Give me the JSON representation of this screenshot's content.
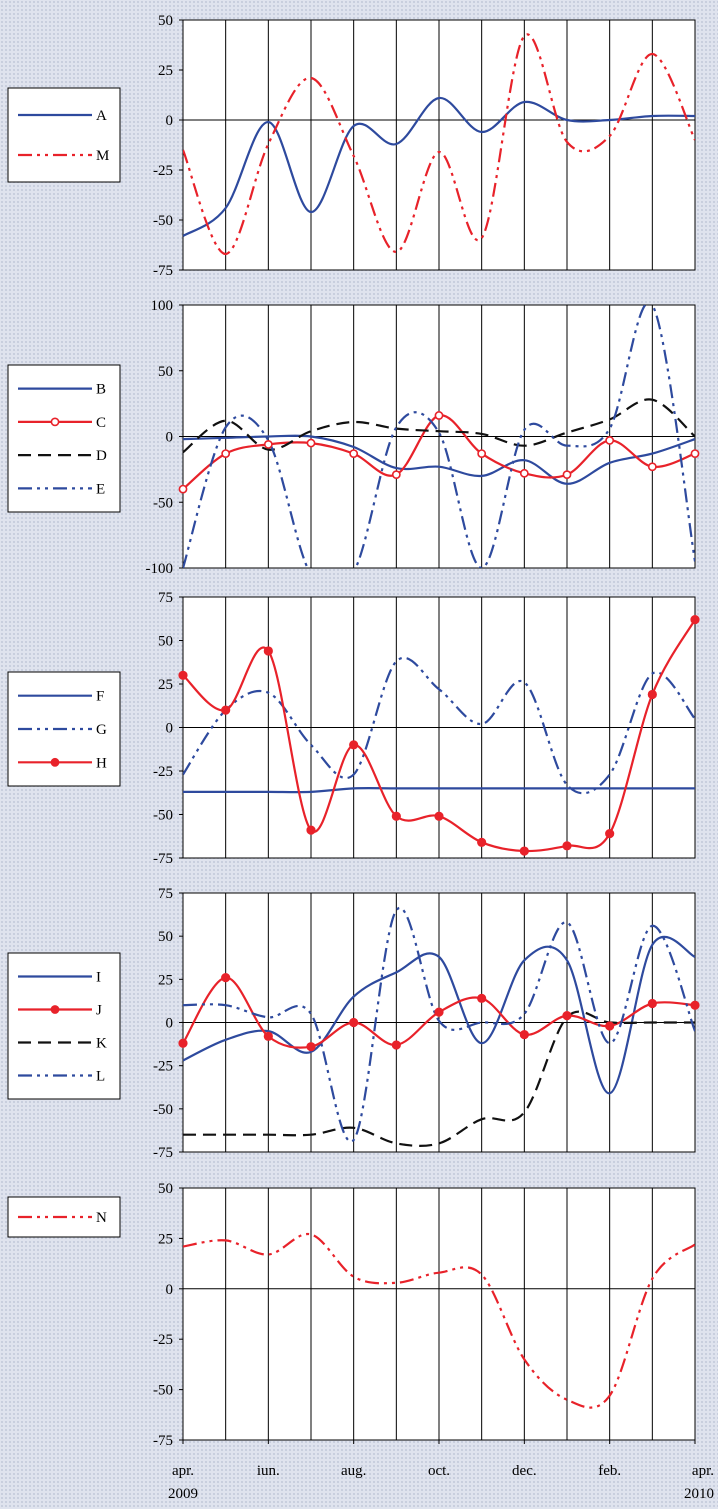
{
  "chart_data": [
    {
      "type": "line",
      "ylim": [
        -75,
        50
      ],
      "yticks": [
        "50",
        "25",
        "0",
        "-25",
        "-50",
        "-75"
      ],
      "grid": true,
      "legend": "left",
      "series": [
        {
          "name": "A",
          "color": "#2e4a9e",
          "dash": "solid",
          "marker": "none",
          "x": [
            0,
            1,
            2,
            3,
            4,
            5,
            6,
            7,
            8,
            9,
            10,
            11,
            12
          ],
          "values": [
            -58,
            -44,
            -1,
            -46,
            -3,
            -12,
            11,
            -6,
            9,
            0,
            0,
            2,
            2
          ]
        },
        {
          "name": "M",
          "color": "#e8222a",
          "dash": "dashdotdot",
          "marker": "none",
          "x": [
            0,
            1,
            2,
            3,
            4,
            5,
            6,
            7,
            8,
            9,
            10,
            11,
            12
          ],
          "values": [
            -15,
            -67,
            -12,
            21,
            -18,
            -66,
            -16,
            -59,
            42,
            -11,
            -8,
            33,
            -10
          ]
        }
      ]
    },
    {
      "type": "line",
      "ylim": [
        -100,
        100
      ],
      "yticks": [
        "100",
        "50",
        "0",
        "-50",
        "-100"
      ],
      "grid": true,
      "legend": "left",
      "series": [
        {
          "name": "B",
          "color": "#2e4a9e",
          "dash": "solid",
          "marker": "none",
          "x": [
            0,
            1,
            2,
            3,
            4,
            5,
            6,
            7,
            8,
            9,
            10,
            11,
            12
          ],
          "values": [
            -2,
            -1,
            0,
            0,
            -8,
            -24,
            -23,
            -30,
            -18,
            -36,
            -20,
            -13,
            -2
          ]
        },
        {
          "name": "C",
          "color": "#e8222a",
          "dash": "solid",
          "marker": "open",
          "x": [
            0,
            1,
            2,
            3,
            4,
            5,
            6,
            7,
            8,
            9,
            10,
            11,
            12
          ],
          "values": [
            -40,
            -13,
            -6,
            -5,
            -13,
            -29,
            16,
            -13,
            -28,
            -29,
            -3,
            -23,
            -13
          ]
        },
        {
          "name": "D",
          "color": "#111111",
          "dash": "dash",
          "marker": "none",
          "x": [
            0,
            1,
            2,
            3,
            4,
            5,
            6,
            7,
            8,
            9,
            10,
            11,
            12
          ],
          "values": [
            -12,
            12,
            -10,
            4,
            11,
            6,
            4,
            2,
            -7,
            3,
            13,
            28,
            0
          ]
        },
        {
          "name": "E",
          "color": "#2e4a9e",
          "dash": "dashdotdot",
          "marker": "none",
          "x": [
            0,
            1,
            2,
            3,
            4,
            5,
            6,
            7,
            8,
            9,
            10,
            11,
            12
          ],
          "values": [
            -100,
            7,
            -3,
            -105,
            -103,
            7,
            3,
            -100,
            5,
            -7,
            6,
            100,
            -95
          ]
        }
      ]
    },
    {
      "type": "line",
      "ylim": [
        -75,
        75
      ],
      "yticks": [
        "75",
        "50",
        "25",
        "0",
        "-25",
        "-50",
        "-75"
      ],
      "grid": true,
      "legend": "left",
      "series": [
        {
          "name": "F",
          "color": "#2e4a9e",
          "dash": "solid",
          "marker": "none",
          "x": [
            0,
            1,
            2,
            3,
            4,
            5,
            6,
            7,
            8,
            9,
            10,
            11,
            12
          ],
          "values": [
            -37,
            -37,
            -37,
            -37,
            -35,
            -35,
            -35,
            -35,
            -35,
            -35,
            -35,
            -35,
            -35
          ]
        },
        {
          "name": "G",
          "color": "#2e4a9e",
          "dash": "dashdotdot",
          "marker": "none",
          "x": [
            0,
            1,
            2,
            3,
            4,
            5,
            6,
            7,
            8,
            9,
            10,
            11,
            12
          ],
          "values": [
            -27,
            10,
            20,
            -10,
            -27,
            38,
            22,
            2,
            26,
            -33,
            -27,
            31,
            5
          ]
        },
        {
          "name": "H",
          "color": "#e8222a",
          "dash": "solid",
          "marker": "filled",
          "x": [
            0,
            1,
            2,
            3,
            4,
            5,
            6,
            7,
            8,
            9,
            10,
            11,
            12
          ],
          "values": [
            30,
            10,
            44,
            -59,
            -10,
            -51,
            -51,
            -66,
            -71,
            -68,
            -61,
            19,
            62
          ]
        }
      ]
    },
    {
      "type": "line",
      "ylim": [
        -75,
        75
      ],
      "yticks": [
        "75",
        "50",
        "25",
        "0",
        "-25",
        "-50",
        "-75"
      ],
      "grid": true,
      "legend": "left",
      "series": [
        {
          "name": "I",
          "color": "#2e4a9e",
          "dash": "solid",
          "marker": "none",
          "x": [
            0,
            1,
            2,
            3,
            4,
            5,
            6,
            7,
            8,
            9,
            10,
            11,
            12
          ],
          "values": [
            -22,
            -10,
            -5,
            -17,
            15,
            29,
            38,
            -12,
            36,
            36,
            -41,
            45,
            38
          ]
        },
        {
          "name": "J",
          "color": "#e8222a",
          "dash": "solid",
          "marker": "filled",
          "x": [
            0,
            1,
            2,
            3,
            4,
            5,
            6,
            7,
            8,
            9,
            10,
            11,
            12
          ],
          "values": [
            -12,
            26,
            -8,
            -14,
            0,
            -13,
            6,
            14,
            -7,
            4,
            -2,
            11,
            10
          ]
        },
        {
          "name": "K",
          "color": "#111111",
          "dash": "dash",
          "marker": "none",
          "x": [
            0,
            1,
            2,
            3,
            4,
            5,
            6,
            7,
            8,
            9,
            10,
            11,
            12
          ],
          "values": [
            -65,
            -65,
            -65,
            -65,
            -61,
            -70,
            -70,
            -56,
            -52,
            3,
            0,
            0,
            0
          ]
        },
        {
          "name": "L",
          "color": "#2e4a9e",
          "dash": "dashdotdot",
          "marker": "none",
          "x": [
            0,
            1,
            2,
            3,
            4,
            5,
            6,
            7,
            8,
            9,
            10,
            11,
            12
          ],
          "values": [
            10,
            10,
            3,
            5,
            -68,
            65,
            1,
            0,
            5,
            58,
            -12,
            56,
            -5
          ]
        }
      ]
    },
    {
      "type": "line",
      "ylim": [
        -75,
        50
      ],
      "yticks": [
        "50",
        "25",
        "0",
        "-25",
        "-50",
        "-75"
      ],
      "grid": true,
      "legend": "left",
      "series": [
        {
          "name": "N",
          "color": "#e8222a",
          "dash": "dashdotdot",
          "marker": "none",
          "x": [
            0,
            1,
            2,
            3,
            4,
            5,
            6,
            7,
            8,
            9,
            10,
            11,
            12
          ],
          "values": [
            21,
            24,
            17,
            27,
            6,
            3,
            8,
            7,
            -35,
            -55,
            -53,
            5,
            22
          ]
        }
      ]
    }
  ],
  "x_axis": {
    "tick_labels": [
      {
        "line1": "apr.",
        "line2": "2009",
        "x": 0
      },
      {
        "line1": "iun.",
        "line2": "",
        "x": 2
      },
      {
        "line1": "aug.",
        "line2": "",
        "x": 4
      },
      {
        "line1": "oct.",
        "line2": "",
        "x": 6
      },
      {
        "line1": "dec.",
        "line2": "",
        "x": 8
      },
      {
        "line1": "feb.",
        "line2": "",
        "x": 10
      },
      {
        "line1": "apr.",
        "line2": "2010",
        "x": 12
      }
    ]
  }
}
